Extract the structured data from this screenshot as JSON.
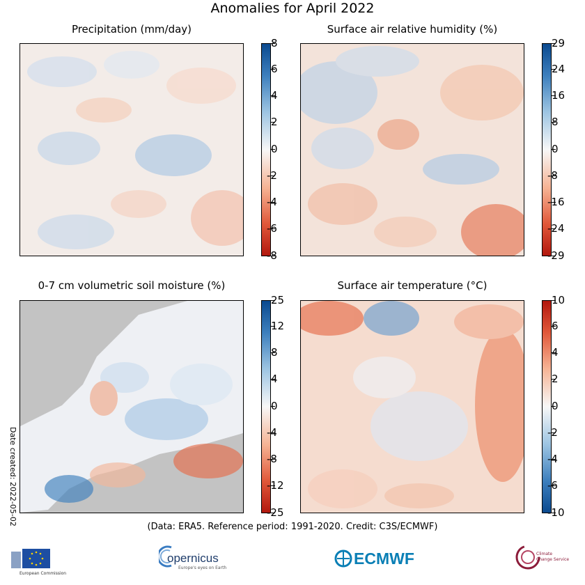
{
  "title": "Anomalies for April 2022",
  "footer": "(Data: ERA5.  Reference period: 1991-2020.  Credit: C3S/ECMWF)",
  "date_created": "Date created: 2022-05-02",
  "logos": {
    "eu": "European Commission",
    "copernicus": "opernicus",
    "copernicus_sub": "Europe's eyes on Earth",
    "ecmwf": "ECMWF",
    "c3s_line1": "Climate",
    "c3s_line2": "Change Service"
  },
  "chart_data": [
    {
      "type": "heatmap",
      "title": "Precipitation (mm/day)",
      "colorbar_ticks": [
        "8",
        "6",
        "4",
        "2",
        "0",
        "-2",
        "-4",
        "-6",
        "-8"
      ],
      "colorbar_range": [
        -8,
        8
      ],
      "colormap": "diverging red-white-blue",
      "colors": {
        "positive": "#0b4a8f",
        "zero": "#f7f7f7",
        "negative": "#b2180e"
      }
    },
    {
      "type": "heatmap",
      "title": "Surface air relative humidity (%)",
      "colorbar_ticks": [
        "29",
        "24",
        "16",
        "8",
        "0",
        "-8",
        "-16",
        "-24",
        "-29"
      ],
      "colorbar_range": [
        -29,
        29
      ],
      "colormap": "diverging red-white-blue",
      "colors": {
        "positive": "#0b4a8f",
        "zero": "#f7f7f7",
        "negative": "#b2180e"
      }
    },
    {
      "type": "heatmap",
      "title": "0-7 cm volumetric soil moisture (%)",
      "colorbar_ticks": [
        "25",
        "12",
        "8",
        "4",
        "0",
        "-4",
        "-8",
        "-12",
        "-25"
      ],
      "colorbar_range": [
        -25,
        25
      ],
      "colormap": "diverging red-white-blue",
      "colors": {
        "positive": "#0b4a8f",
        "zero": "#f7f7f7",
        "negative": "#b2180e",
        "missing": "#c3c3c3"
      }
    },
    {
      "type": "heatmap",
      "title": "Surface air temperature (°C)",
      "colorbar_ticks": [
        "10",
        "6",
        "4",
        "2",
        "0",
        "-2",
        "-4",
        "-6",
        "-10"
      ],
      "colorbar_range": [
        -10,
        10
      ],
      "colormap": "diverging blue-white-red",
      "colors": {
        "positive": "#b2180e",
        "zero": "#f7f7f7",
        "negative": "#0b4a8f"
      }
    }
  ]
}
